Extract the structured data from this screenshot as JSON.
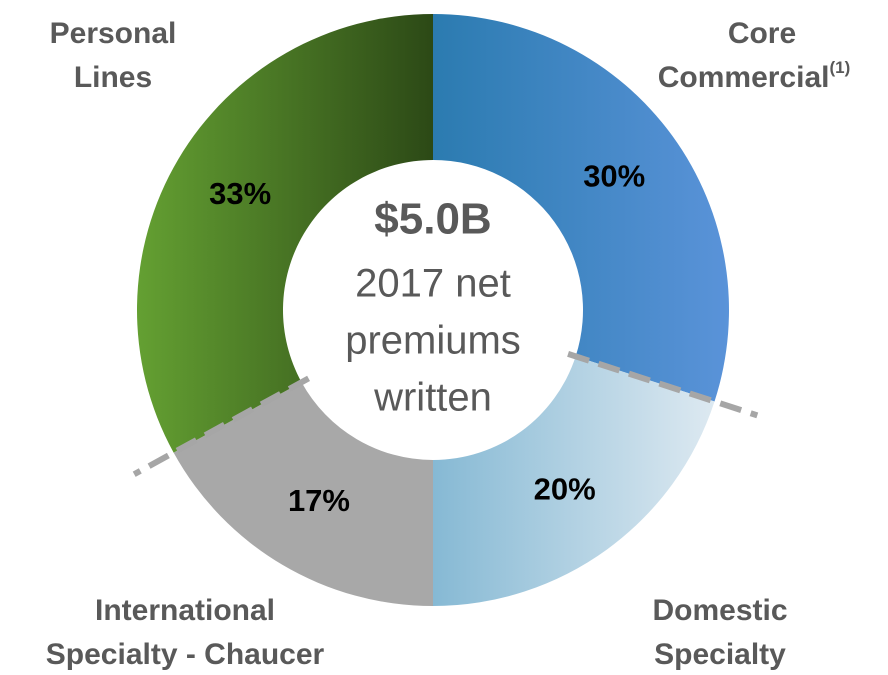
{
  "chart_data": {
    "type": "donut",
    "categories": [
      [
        "Core",
        "Commercial"
      ],
      [
        "Domestic",
        "Specialty"
      ],
      [
        "International",
        "Specialty - Chaucer"
      ],
      [
        "Personal",
        "Lines"
      ]
    ],
    "category_notes": [
      "(1)",
      null,
      null,
      null
    ],
    "values": [
      30,
      20,
      17,
      33
    ],
    "value_labels": [
      "30%",
      "20%",
      "17%",
      "33%"
    ],
    "colors": [
      [
        "#2b7bb0",
        "#5a93d9"
      ],
      [
        "#86b9d4",
        "#dde9f1"
      ],
      [
        "#a8a8a8",
        "#a8a8a8"
      ],
      [
        "#64a032",
        "#2c4916"
      ]
    ],
    "center_value": "$5.0B",
    "center_text": [
      "2017 net",
      "premiums",
      "written"
    ]
  }
}
